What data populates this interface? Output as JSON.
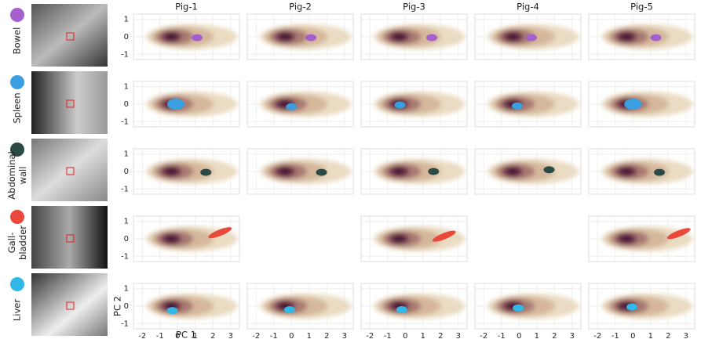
{
  "chart_data": {
    "type": "scatter",
    "columns": [
      "Pig-1",
      "Pig-2",
      "Pig-3",
      "Pig-4",
      "Pig-5"
    ],
    "xlabel": "PC 1",
    "ylabel": "PC 2",
    "xlim": [
      -2.5,
      3.5
    ],
    "ylim": [
      -1.3,
      1.3
    ],
    "xticks": [
      -2,
      -1,
      0,
      1,
      2,
      3
    ],
    "yticks": [
      -1,
      0,
      1
    ],
    "grid": true,
    "series": [
      {
        "name": "Bowel",
        "color": "#a55fcf",
        "x": [
          1.1,
          1.1,
          1.5,
          0.7,
          1.3
        ],
        "y": [
          -0.05,
          -0.05,
          -0.05,
          -0.05,
          -0.05
        ]
      },
      {
        "name": "Spleen",
        "color": "#3a9fe0",
        "x": [
          -0.1,
          0.0,
          -0.3,
          -0.1,
          0.0
        ],
        "y": [
          0.0,
          -0.15,
          -0.05,
          -0.1,
          0.0
        ]
      },
      {
        "name": "Abdominal\nwall",
        "color": "#2b4a45",
        "x": [
          1.6,
          1.7,
          1.6,
          1.7,
          1.5
        ],
        "y": [
          -0.05,
          -0.05,
          0.0,
          0.1,
          -0.05
        ]
      },
      {
        "name": "Gall-\nbladder",
        "color": "#e8493a",
        "x": [
          2.4,
          null,
          2.2,
          null,
          2.6
        ],
        "y": [
          0.35,
          null,
          0.15,
          null,
          0.3
        ]
      },
      {
        "name": "Liver",
        "color": "#2fb8e8",
        "x": [
          -0.3,
          -0.1,
          -0.2,
          -0.05,
          -0.05
        ],
        "y": [
          -0.25,
          -0.2,
          -0.2,
          -0.1,
          -0.05
        ]
      }
    ]
  }
}
